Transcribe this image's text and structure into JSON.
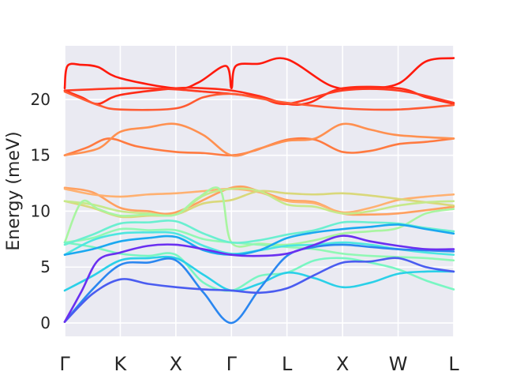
{
  "chart_data": {
    "type": "line",
    "title": "",
    "xlabel": "",
    "ylabel": "Energy (meV)",
    "x_ticks": [
      "Γ",
      "K",
      "X",
      "Γ",
      "L",
      "X",
      "W",
      "L"
    ],
    "y_ticks": [
      0,
      5,
      10,
      15,
      20
    ],
    "xlim": [
      0,
      7
    ],
    "ylim": [
      -1.2,
      24.8
    ],
    "grid": true,
    "legend": "none",
    "background": "#eaeaf2",
    "series": [
      {
        "color": "#ff1a0d",
        "x": [
          0,
          0.05,
          0.3,
          0.6,
          1.0,
          2.0,
          2.4,
          2.9,
          3.0,
          3.08,
          3.5,
          4.0,
          4.8,
          5.4,
          6.0,
          6.5,
          7.0
        ],
        "values": [
          21.0,
          23.0,
          23.1,
          22.9,
          21.9,
          21.0,
          21.5,
          23.0,
          21.0,
          23.0,
          23.2,
          23.6,
          21.2,
          21.0,
          21.4,
          23.4,
          23.7
        ]
      },
      {
        "color": "#ff2b16",
        "x": [
          0,
          0.3,
          0.6,
          1.0,
          2.0,
          2.5,
          3.0,
          3.5,
          4.0,
          4.4,
          5.0,
          6.0,
          6.5,
          7.0
        ],
        "values": [
          20.8,
          20.2,
          19.6,
          20.4,
          21.0,
          21.0,
          20.8,
          20.3,
          19.6,
          19.7,
          21.0,
          21.0,
          20.2,
          19.6
        ]
      },
      {
        "color": "#ff3a22",
        "x": [
          0,
          0.5,
          1.0,
          1.5,
          2.0,
          2.5,
          3.0,
          3.5,
          4.0,
          5.0,
          6.0,
          7.0
        ],
        "values": [
          20.8,
          20.9,
          21.0,
          21.0,
          20.9,
          20.7,
          20.5,
          20.2,
          19.6,
          20.8,
          20.8,
          19.7
        ]
      },
      {
        "color": "#ff5a32",
        "x": [
          0,
          0.6,
          1.0,
          2.0,
          2.5,
          3.0,
          3.5,
          4.0,
          5.0,
          6.0,
          7.0
        ],
        "values": [
          20.7,
          19.5,
          19.1,
          19.2,
          20.2,
          20.5,
          20.1,
          19.7,
          19.2,
          19.1,
          19.5
        ]
      },
      {
        "color": "#ff7a40",
        "x": [
          0,
          0.4,
          0.8,
          1.3,
          2.0,
          2.5,
          3.0,
          3.4,
          4.0,
          4.5,
          5.0,
          5.5,
          6.0,
          6.5,
          7.0
        ],
        "values": [
          15.0,
          15.7,
          16.5,
          15.8,
          15.3,
          15.2,
          15.0,
          15.4,
          16.4,
          16.4,
          15.3,
          15.4,
          16.0,
          16.2,
          16.5
        ]
      },
      {
        "color": "#ff9050",
        "x": [
          0,
          0.6,
          1.0,
          1.5,
          2.0,
          2.5,
          3.0,
          3.5,
          4.0,
          4.5,
          5.0,
          5.5,
          6.0,
          7.0
        ],
        "values": [
          15.0,
          15.6,
          17.1,
          17.5,
          17.8,
          16.8,
          15.0,
          15.6,
          16.3,
          16.5,
          17.8,
          17.3,
          16.8,
          16.5
        ]
      },
      {
        "color": "#ffa060",
        "x": [
          0,
          0.5,
          1.0,
          1.5,
          2.0,
          3.0,
          3.5,
          4.0,
          4.5,
          5.0,
          5.5,
          6.0,
          7.0
        ],
        "values": [
          12.1,
          11.7,
          10.3,
          10.0,
          9.9,
          12.1,
          11.8,
          11.0,
          10.8,
          9.8,
          9.7,
          9.8,
          10.4
        ]
      },
      {
        "color": "#ffb070",
        "x": [
          0,
          0.5,
          1.0,
          1.5,
          2.0,
          2.5,
          3.0,
          3.5,
          4.0,
          4.5,
          5.0,
          5.5,
          6.0,
          6.5,
          7.0
        ],
        "values": [
          12.0,
          11.5,
          11.3,
          11.5,
          11.6,
          11.8,
          12.0,
          11.7,
          10.9,
          10.7,
          9.9,
          10.3,
          11.0,
          11.3,
          11.5
        ]
      },
      {
        "color": "#d9d87a",
        "x": [
          0,
          0.5,
          1.0,
          1.5,
          2.0,
          2.5,
          3.0,
          3.5,
          4.0,
          4.5,
          5.0,
          5.5,
          6.0,
          6.5,
          7.0
        ],
        "values": [
          10.9,
          10.3,
          9.5,
          9.6,
          9.7,
          10.7,
          11.0,
          11.8,
          11.6,
          11.5,
          11.6,
          11.4,
          11.1,
          10.8,
          10.5
        ]
      },
      {
        "color": "#c6e98a",
        "x": [
          0,
          0.5,
          1.0,
          1.5,
          2.0,
          2.5,
          3.0,
          3.5,
          4.0,
          4.5,
          5.0,
          5.5,
          6.0,
          6.5,
          7.0
        ],
        "values": [
          10.9,
          10.6,
          10.0,
          9.8,
          9.7,
          11.4,
          12.0,
          11.8,
          10.6,
          10.4,
          9.8,
          10.0,
          10.5,
          10.8,
          10.9
        ]
      },
      {
        "color": "#a8f5a0",
        "x": [
          0,
          0.3,
          0.6,
          1.0,
          1.5,
          2.0,
          2.4,
          2.8,
          3.0,
          3.5,
          4.0,
          4.5,
          5.0,
          5.5,
          6.0,
          6.5,
          7.0
        ],
        "values": [
          7.2,
          10.8,
          10.2,
          9.6,
          9.7,
          9.7,
          11.2,
          11.9,
          7.2,
          7.1,
          7.0,
          7.4,
          8.0,
          8.2,
          8.5,
          9.8,
          10.2
        ]
      },
      {
        "color": "#90f8b4",
        "x": [
          0,
          0.5,
          1.0,
          1.5,
          2.0,
          2.5,
          3.0,
          3.5,
          4.0,
          4.5,
          5.0,
          5.5,
          6.0,
          6.5,
          7.0
        ],
        "values": [
          7.2,
          7.6,
          8.4,
          8.3,
          8.3,
          7.5,
          7.2,
          7.0,
          6.8,
          6.6,
          6.2,
          6.0,
          5.9,
          5.8,
          5.6
        ]
      },
      {
        "color": "#78f6c2",
        "x": [
          0,
          0.5,
          1.0,
          1.5,
          2.0,
          2.5,
          3.0,
          3.5,
          4.0,
          4.5,
          5.0,
          5.5,
          6.0,
          6.5,
          7.0
        ],
        "values": [
          7.2,
          6.8,
          6.2,
          6.0,
          6.1,
          3.6,
          2.9,
          4.2,
          4.5,
          5.6,
          5.8,
          5.4,
          4.8,
          3.8,
          3.0
        ]
      },
      {
        "color": "#6aefd0",
        "x": [
          0,
          0.5,
          1.0,
          1.5,
          2.0,
          2.5,
          3.0,
          3.5,
          4.0,
          4.5,
          5.0,
          5.5,
          6.0,
          6.5,
          7.0
        ],
        "values": [
          7.0,
          7.9,
          8.9,
          9.0,
          9.1,
          8.0,
          7.2,
          7.4,
          7.9,
          8.3,
          9.0,
          9.0,
          8.9,
          8.5,
          8.2
        ]
      },
      {
        "color": "#4de6e0",
        "x": [
          0,
          0.5,
          1.0,
          1.5,
          2.0,
          2.5,
          3.0,
          3.5,
          4.0,
          4.5,
          5.0,
          5.5,
          6.0,
          6.5,
          7.0
        ],
        "values": [
          6.1,
          7.4,
          8.0,
          8.1,
          8.0,
          6.9,
          6.2,
          6.5,
          6.9,
          7.0,
          7.2,
          7.0,
          6.6,
          6.3,
          6.1
        ]
      },
      {
        "color": "#2ad0e8",
        "x": [
          0,
          0.5,
          1.0,
          1.5,
          2.0,
          2.5,
          3.0,
          3.5,
          4.0,
          4.5,
          5.0,
          5.5,
          6.0,
          6.5,
          7.0
        ],
        "values": [
          2.9,
          4.2,
          5.6,
          5.8,
          5.8,
          4.3,
          2.9,
          3.5,
          4.5,
          4.0,
          3.2,
          3.6,
          4.4,
          4.6,
          4.6
        ]
      },
      {
        "color": "#1aa8f0",
        "x": [
          0,
          0.5,
          1.0,
          1.5,
          2.0,
          2.5,
          3.0,
          3.5,
          4.0,
          4.5,
          5.0,
          5.5,
          6.0,
          6.5,
          7.0
        ],
        "values": [
          6.1,
          6.6,
          7.3,
          7.6,
          7.7,
          6.5,
          6.1,
          6.5,
          7.6,
          8.1,
          8.4,
          8.6,
          8.8,
          8.4,
          8.0
        ]
      },
      {
        "color": "#2a86f0",
        "x": [
          0,
          0.5,
          1.0,
          1.5,
          2.0,
          2.5,
          3.0,
          3.5,
          4.0,
          4.5,
          5.0,
          5.5,
          6.0,
          6.5,
          7.0
        ],
        "values": [
          0.1,
          3.0,
          5.2,
          5.4,
          5.6,
          2.7,
          0.0,
          3.0,
          6.0,
          6.8,
          7.0,
          6.8,
          6.6,
          6.5,
          6.4
        ]
      },
      {
        "color": "#4a5cf0",
        "x": [
          0,
          0.5,
          1.0,
          1.5,
          2.0,
          2.5,
          3.0,
          3.5,
          4.0,
          4.5,
          5.0,
          5.5,
          6.0,
          6.5,
          7.0
        ],
        "values": [
          0.1,
          2.6,
          3.9,
          3.5,
          3.2,
          3.0,
          2.9,
          2.7,
          3.1,
          4.3,
          5.4,
          5.5,
          5.8,
          5.0,
          4.6
        ]
      },
      {
        "color": "#6a2ff0",
        "x": [
          0,
          0.3,
          0.6,
          1.0,
          1.5,
          2.0,
          2.5,
          3.0,
          3.5,
          4.0,
          4.5,
          5.0,
          5.5,
          6.0,
          6.5,
          7.0
        ],
        "values": [
          0.1,
          2.8,
          5.6,
          6.3,
          6.9,
          7.0,
          6.6,
          6.1,
          6.0,
          6.2,
          7.0,
          7.8,
          7.3,
          6.9,
          6.6,
          6.6
        ]
      }
    ]
  }
}
